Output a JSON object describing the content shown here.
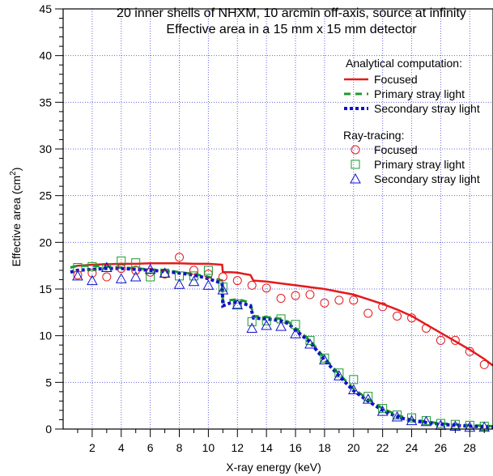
{
  "chart_data": {
    "type": "line",
    "title_line1": "20 inner shells of NHXM, 10 arcmin off-axis, source at infinity",
    "title_line2": "Effective area in a 15 mm x 15 mm detector",
    "xlabel": "X-ray energy (keV)",
    "ylabel_main": "Effective area (cm",
    "ylabel_sup": "2",
    "ylabel_end": ")",
    "xlim": [
      0,
      29.6
    ],
    "ylim": [
      0,
      45
    ],
    "x_ticks": [
      "2",
      "4",
      "6",
      "8",
      "10",
      "12",
      "14",
      "16",
      "18",
      "20",
      "22",
      "24",
      "26",
      "28"
    ],
    "y_ticks": [
      "0",
      "5",
      "10",
      "15",
      "20",
      "25",
      "30",
      "35",
      "40",
      "45"
    ],
    "grid": true,
    "legend_groups": [
      {
        "title": "Analytical computation:",
        "entries": [
          "Focused",
          "Primary stray light",
          "Secondary stray light"
        ]
      },
      {
        "title": "Ray-tracing:",
        "entries": [
          "Focused",
          "Primary stray light",
          "Secondary stray light"
        ]
      }
    ],
    "colors": {
      "focused": "#e41a1c",
      "primary": "#1a9a2e",
      "secondary": "#1010cc",
      "grid": "#6666dd"
    },
    "analytical_series": [
      {
        "name": "Focused",
        "style": "solid",
        "x": [
          0.5,
          1,
          2,
          3,
          4,
          5,
          6,
          7,
          8,
          9,
          10,
          10.95,
          11,
          11.5,
          12,
          12.5,
          12.9,
          13.1,
          14,
          15,
          16,
          17,
          18,
          19,
          20,
          21,
          22,
          23,
          24,
          25,
          26,
          27,
          28,
          29,
          29.6
        ],
        "y": [
          17.3,
          17.5,
          17.6,
          17.65,
          17.7,
          17.7,
          17.75,
          17.75,
          17.75,
          17.7,
          17.7,
          17.6,
          16.8,
          16.8,
          16.75,
          16.6,
          16.5,
          15.9,
          15.8,
          15.6,
          15.4,
          15.2,
          15.0,
          14.7,
          14.4,
          13.9,
          13.4,
          12.8,
          12.1,
          11.2,
          10.3,
          9.4,
          8.5,
          7.5,
          6.8
        ]
      },
      {
        "name": "Primary stray light",
        "style": "dashed",
        "x": [
          0.5,
          1,
          2,
          3,
          4,
          5,
          6,
          7,
          8,
          9,
          10,
          10.95,
          11,
          11.5,
          12,
          12.5,
          12.9,
          13.1,
          14,
          15,
          15.5,
          16,
          17,
          18,
          19,
          20,
          21,
          22,
          23,
          24,
          25,
          26,
          27,
          28,
          29,
          29.6
        ],
        "y": [
          17.3,
          17.5,
          17.5,
          17.4,
          17.3,
          17.2,
          17.1,
          17.0,
          16.8,
          16.6,
          16.3,
          15.9,
          13.6,
          13.8,
          13.9,
          13.7,
          13.5,
          12.1,
          12.0,
          11.8,
          11.5,
          10.8,
          9.5,
          7.6,
          5.9,
          4.3,
          3.2,
          2.2,
          1.5,
          1.0,
          0.8,
          0.6,
          0.5,
          0.4,
          0.35,
          0.3
        ]
      },
      {
        "name": "Secondary stray light",
        "style": "dotted",
        "x": [
          0.5,
          1,
          2,
          3,
          4,
          5,
          6,
          7,
          8,
          9,
          10,
          10.95,
          11,
          11.5,
          12,
          12.5,
          12.9,
          13.1,
          14,
          15,
          15.5,
          16,
          17,
          18,
          19,
          20,
          21,
          22,
          23,
          24,
          25,
          26,
          27,
          28,
          29,
          29.6
        ],
        "y": [
          16.8,
          17.0,
          17.1,
          17.2,
          17.2,
          17.1,
          17.0,
          16.9,
          16.7,
          16.5,
          16.1,
          15.6,
          13.2,
          13.5,
          13.6,
          13.4,
          13.2,
          11.9,
          11.8,
          11.6,
          11.3,
          10.6,
          9.3,
          7.4,
          5.7,
          4.1,
          3.0,
          2.0,
          1.3,
          0.9,
          0.7,
          0.5,
          0.4,
          0.3,
          0.25,
          0.2
        ]
      }
    ],
    "raytracing_series": [
      {
        "name": "Focused",
        "marker": "circle",
        "x": [
          1,
          2,
          3,
          4,
          5,
          6,
          7,
          8,
          9,
          10,
          11,
          12,
          13,
          14,
          15,
          16,
          17,
          18,
          19,
          20,
          21,
          22,
          23,
          24,
          25,
          26,
          27,
          28,
          29
        ],
        "y": [
          16.5,
          16.7,
          16.3,
          17.2,
          17.0,
          16.8,
          16.6,
          18.4,
          17.0,
          16.6,
          16.3,
          15.9,
          15.4,
          15.1,
          14.0,
          14.3,
          14.4,
          13.5,
          13.8,
          13.8,
          12.4,
          13.1,
          12.1,
          11.9,
          10.8,
          9.5,
          9.5,
          8.3,
          6.9
        ]
      },
      {
        "name": "Primary stray light",
        "marker": "square",
        "x": [
          1,
          2,
          3,
          4,
          5,
          6,
          7,
          8,
          9,
          10,
          11,
          12,
          13,
          14,
          15,
          16,
          17,
          18,
          19,
          20,
          21,
          22,
          23,
          24,
          25,
          26,
          27,
          28,
          29
        ],
        "y": [
          17.3,
          17.4,
          17.3,
          18.0,
          17.8,
          16.3,
          16.7,
          16.4,
          16.4,
          17.0,
          15.2,
          13.4,
          11.5,
          11.6,
          11.8,
          11.2,
          9.5,
          7.6,
          6.0,
          5.3,
          3.5,
          2.2,
          1.5,
          1.2,
          0.9,
          0.6,
          0.5,
          0.4,
          0.3
        ]
      },
      {
        "name": "Secondary stray light",
        "marker": "triangle",
        "x": [
          1,
          2,
          3,
          4,
          5,
          6,
          7,
          8,
          9,
          10,
          11,
          12,
          13,
          14,
          15,
          16,
          17,
          18,
          19,
          20,
          21,
          22,
          23,
          24,
          25,
          26,
          27,
          28,
          29
        ],
        "y": [
          16.4,
          15.9,
          17.3,
          16.1,
          16.3,
          17.1,
          16.7,
          15.5,
          15.8,
          15.4,
          14.9,
          13.3,
          10.8,
          11.1,
          11.0,
          10.2,
          9.1,
          7.4,
          5.7,
          4.2,
          3.2,
          1.9,
          1.3,
          0.9,
          0.8,
          0.4,
          0.3,
          0.2,
          0.2
        ]
      }
    ]
  }
}
